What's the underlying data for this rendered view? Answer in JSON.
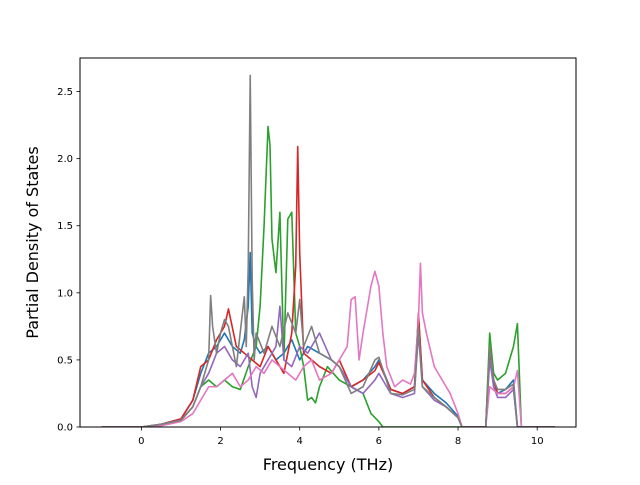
{
  "chart_data": {
    "type": "line",
    "title": "",
    "xlabel": "Frequency (THz)",
    "ylabel": "Partial Density of States",
    "xlim": [
      -1.55,
      10.98
    ],
    "ylim": [
      0,
      2.75
    ],
    "xticks": [
      0,
      2,
      4,
      6,
      8,
      10
    ],
    "yticks": [
      0.0,
      0.5,
      1.0,
      1.5,
      2.0,
      2.5
    ],
    "xtick_labels": [
      "0",
      "2",
      "4",
      "6",
      "8",
      "10"
    ],
    "ytick_labels": [
      "0.0",
      "0.5",
      "1.0",
      "1.5",
      "2.0",
      "2.5"
    ],
    "grid": false,
    "legend": null,
    "series": [
      {
        "color": "#1f77b4",
        "x": [
          -1.0,
          0.0,
          0.5,
          1.0,
          1.3,
          1.5,
          1.7,
          1.9,
          2.1,
          2.3,
          2.5,
          2.6,
          2.7,
          2.75,
          2.8,
          2.9,
          3.0,
          3.2,
          3.4,
          3.6,
          3.8,
          4.0,
          4.2,
          4.5,
          4.8,
          5.0,
          5.3,
          5.6,
          5.9,
          6.0,
          6.3,
          6.6,
          6.9,
          7.0,
          7.1,
          7.4,
          7.7,
          8.0,
          8.1,
          8.5,
          8.7,
          8.8,
          8.9,
          9.0,
          9.2,
          9.4,
          9.5,
          9.6,
          10.45
        ],
        "y": [
          0.0,
          0.0,
          0.02,
          0.06,
          0.2,
          0.4,
          0.55,
          0.6,
          0.7,
          0.6,
          0.55,
          0.65,
          0.9,
          1.3,
          0.7,
          0.6,
          0.55,
          0.6,
          0.5,
          0.55,
          0.65,
          0.5,
          0.6,
          0.55,
          0.5,
          0.45,
          0.3,
          0.35,
          0.45,
          0.5,
          0.28,
          0.25,
          0.3,
          0.82,
          0.35,
          0.25,
          0.18,
          0.08,
          0.0,
          0.0,
          0.0,
          0.55,
          0.3,
          0.25,
          0.28,
          0.35,
          0.0,
          0.0,
          0.0
        ]
      },
      {
        "color": "#2ca02c",
        "x": [
          -1.0,
          0.0,
          0.5,
          1.0,
          1.3,
          1.5,
          1.7,
          1.9,
          2.1,
          2.3,
          2.5,
          2.7,
          2.9,
          3.0,
          3.1,
          3.2,
          3.25,
          3.3,
          3.4,
          3.5,
          3.6,
          3.7,
          3.8,
          3.9,
          4.0,
          4.1,
          4.2,
          4.3,
          4.4,
          4.5,
          4.7,
          5.0,
          5.3,
          5.6,
          5.8,
          6.0,
          6.1,
          6.5,
          7.0,
          8.0,
          8.5,
          8.7,
          8.8,
          8.9,
          9.0,
          9.2,
          9.4,
          9.5,
          9.6,
          10.45
        ],
        "y": [
          0.0,
          0.0,
          0.01,
          0.05,
          0.15,
          0.3,
          0.35,
          0.3,
          0.35,
          0.3,
          0.28,
          0.45,
          0.6,
          0.9,
          1.5,
          2.24,
          2.1,
          1.4,
          1.15,
          1.6,
          0.5,
          1.55,
          1.6,
          0.7,
          0.6,
          0.45,
          0.2,
          0.22,
          0.18,
          0.3,
          0.45,
          0.35,
          0.3,
          0.25,
          0.1,
          0.04,
          0.0,
          0.0,
          0.0,
          0.0,
          0.0,
          0.0,
          0.7,
          0.4,
          0.35,
          0.4,
          0.6,
          0.77,
          0.0,
          0.0
        ]
      },
      {
        "color": "#d62728",
        "x": [
          -1.0,
          0.0,
          0.5,
          1.0,
          1.3,
          1.5,
          1.7,
          1.9,
          2.1,
          2.2,
          2.4,
          2.6,
          2.8,
          3.0,
          3.2,
          3.4,
          3.6,
          3.8,
          3.9,
          3.95,
          4.0,
          4.1,
          4.3,
          4.5,
          4.8,
          5.0,
          5.3,
          5.6,
          5.9,
          6.0,
          6.3,
          6.6,
          6.9,
          7.0,
          7.1,
          7.4,
          7.7,
          8.0,
          8.1,
          8.5,
          8.7,
          8.8,
          8.9,
          9.0,
          9.2,
          9.4,
          9.5,
          9.6,
          10.45
        ],
        "y": [
          0.0,
          0.0,
          0.02,
          0.06,
          0.2,
          0.45,
          0.5,
          0.65,
          0.75,
          0.88,
          0.6,
          0.55,
          0.5,
          0.45,
          0.6,
          0.5,
          0.4,
          0.7,
          1.2,
          2.09,
          1.3,
          0.55,
          0.5,
          0.45,
          0.4,
          0.5,
          0.3,
          0.35,
          0.42,
          0.48,
          0.28,
          0.25,
          0.3,
          0.85,
          0.35,
          0.22,
          0.15,
          0.07,
          0.0,
          0.0,
          0.0,
          0.58,
          0.35,
          0.25,
          0.25,
          0.3,
          0.0,
          0.0,
          0.0
        ]
      },
      {
        "color": "#9467bd",
        "x": [
          -1.0,
          0.0,
          0.5,
          1.0,
          1.3,
          1.5,
          1.7,
          1.9,
          2.1,
          2.3,
          2.5,
          2.7,
          2.8,
          2.9,
          3.0,
          3.2,
          3.4,
          3.5,
          3.6,
          3.8,
          4.0,
          4.2,
          4.5,
          4.8,
          5.0,
          5.3,
          5.6,
          5.9,
          6.0,
          6.3,
          6.6,
          6.9,
          7.0,
          7.1,
          7.4,
          7.7,
          8.0,
          8.1,
          8.5,
          8.7,
          8.8,
          8.9,
          9.0,
          9.2,
          9.4,
          9.5,
          9.6,
          10.45
        ],
        "y": [
          0.0,
          0.0,
          0.02,
          0.05,
          0.15,
          0.3,
          0.4,
          0.55,
          0.6,
          0.5,
          0.45,
          0.55,
          0.3,
          0.22,
          0.4,
          0.5,
          0.6,
          0.9,
          0.5,
          0.45,
          0.6,
          0.55,
          0.7,
          0.5,
          0.45,
          0.3,
          0.25,
          0.35,
          0.4,
          0.25,
          0.22,
          0.25,
          0.7,
          0.3,
          0.2,
          0.15,
          0.07,
          0.0,
          0.0,
          0.0,
          0.5,
          0.3,
          0.22,
          0.22,
          0.28,
          0.0,
          0.0,
          0.0
        ]
      },
      {
        "color": "#e377c2",
        "x": [
          -1.0,
          0.0,
          0.5,
          1.0,
          1.3,
          1.5,
          1.7,
          1.9,
          2.1,
          2.3,
          2.5,
          2.7,
          2.9,
          3.1,
          3.3,
          3.5,
          3.7,
          3.9,
          4.1,
          4.3,
          4.5,
          4.8,
          5.0,
          5.2,
          5.3,
          5.4,
          5.5,
          5.6,
          5.8,
          5.9,
          6.0,
          6.1,
          6.2,
          6.4,
          6.6,
          6.8,
          6.9,
          7.0,
          7.05,
          7.1,
          7.2,
          7.4,
          7.6,
          7.8,
          8.0,
          8.1,
          8.5,
          8.7,
          8.8,
          9.0,
          9.2,
          9.4,
          9.5,
          9.6,
          10.45
        ],
        "y": [
          0.0,
          0.0,
          0.01,
          0.04,
          0.1,
          0.2,
          0.3,
          0.3,
          0.35,
          0.4,
          0.3,
          0.35,
          0.45,
          0.4,
          0.5,
          0.45,
          0.4,
          0.35,
          0.45,
          0.5,
          0.35,
          0.4,
          0.5,
          0.6,
          0.95,
          0.97,
          0.5,
          0.7,
          1.05,
          1.16,
          1.05,
          0.7,
          0.45,
          0.3,
          0.35,
          0.32,
          0.4,
          0.8,
          1.22,
          0.85,
          0.7,
          0.45,
          0.35,
          0.25,
          0.1,
          0.0,
          0.0,
          0.0,
          0.3,
          0.25,
          0.25,
          0.3,
          0.42,
          0.0,
          0.0
        ]
      },
      {
        "color": "#7f7f7f",
        "x": [
          -1.0,
          0.0,
          0.5,
          1.0,
          1.3,
          1.5,
          1.7,
          1.75,
          1.8,
          1.9,
          2.0,
          2.1,
          2.2,
          2.4,
          2.6,
          2.65,
          2.7,
          2.75,
          2.8,
          2.85,
          2.9,
          3.1,
          3.3,
          3.5,
          3.7,
          3.9,
          4.0,
          4.1,
          4.3,
          4.5,
          4.8,
          5.0,
          5.3,
          5.6,
          5.9,
          6.0,
          6.3,
          6.6,
          6.9,
          7.0,
          7.1,
          7.4,
          7.7,
          8.0,
          8.1,
          8.5,
          8.7,
          8.8,
          8.9,
          9.0,
          9.2,
          9.4,
          9.5,
          9.6,
          10.45
        ],
        "y": [
          0.0,
          0.0,
          0.02,
          0.05,
          0.15,
          0.3,
          0.5,
          0.98,
          0.75,
          0.55,
          0.7,
          0.8,
          0.75,
          0.45,
          0.97,
          0.6,
          1.2,
          2.62,
          1.1,
          0.5,
          0.7,
          0.55,
          0.75,
          0.6,
          0.85,
          0.7,
          0.95,
          0.6,
          0.75,
          0.55,
          0.5,
          0.45,
          0.25,
          0.3,
          0.5,
          0.52,
          0.25,
          0.24,
          0.28,
          0.75,
          0.3,
          0.22,
          0.15,
          0.07,
          0.0,
          0.0,
          0.0,
          0.6,
          0.35,
          0.28,
          0.28,
          0.32,
          0.0,
          0.0,
          0.0
        ]
      }
    ]
  }
}
